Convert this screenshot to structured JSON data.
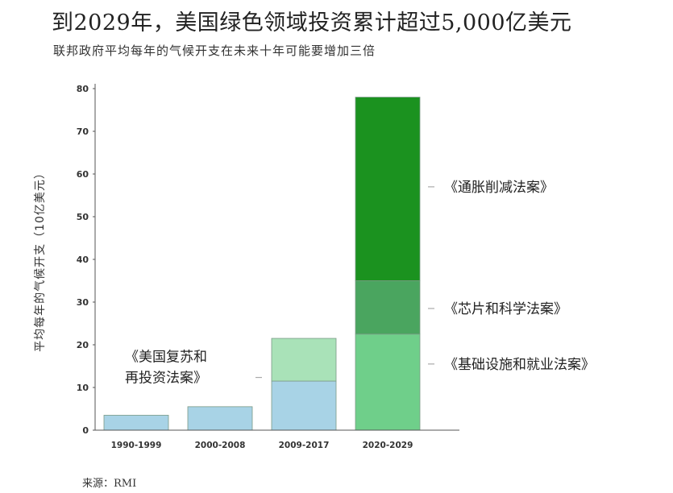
{
  "title": "到2029年，美国绿色领域投资累计超过5,000亿美元",
  "subtitle": "联邦政府平均每年的气候开支在未来十年可能要增加三倍",
  "source": "来源：RMI",
  "colors": {
    "blue": "#a8d3e6",
    "light_green": "#a9e2b8",
    "green_low": "#6fcf8a",
    "green_mid": "#4aa55f",
    "green_top": "#1b921f",
    "axis": "#555555"
  },
  "chart_data": {
    "type": "bar",
    "stacked": true,
    "categories": [
      "1990-1999",
      "2000-2008",
      "2009-2017",
      "2020-2029"
    ],
    "ylabel": "平均每年的气候开支（10亿美元）",
    "xlabel": "",
    "ylim": [
      0,
      80
    ],
    "yticks": [
      0,
      10,
      20,
      30,
      40,
      50,
      60,
      70,
      80
    ],
    "segments": [
      {
        "category": "1990-1999",
        "from": 0,
        "to": 3.5,
        "color": "#a8d3e6"
      },
      {
        "category": "2000-2008",
        "from": 0,
        "to": 5.5,
        "color": "#a8d3e6"
      },
      {
        "category": "2009-2017",
        "from": 0,
        "to": 11.5,
        "color": "#a8d3e6"
      },
      {
        "category": "2009-2017",
        "from": 11.5,
        "to": 21.5,
        "color": "#a9e2b8"
      },
      {
        "category": "2020-2029",
        "from": 0,
        "to": 22.5,
        "color": "#6fcf8a"
      },
      {
        "category": "2020-2029",
        "from": 22.5,
        "to": 35,
        "color": "#4aa55f"
      },
      {
        "category": "2020-2029",
        "from": 35,
        "to": 78,
        "color": "#1b921f"
      }
    ],
    "annotations": [
      {
        "lines": [
          "《美国复苏和",
          "再投资法案》"
        ],
        "target_category": "2009-2017",
        "y": 16.5
      },
      {
        "lines": [
          "《通胀削减法案》"
        ],
        "target_category": "2020-2029",
        "y": 57
      },
      {
        "lines": [
          "《芯片和科学法案》"
        ],
        "target_category": "2020-2029",
        "y": 28.5
      },
      {
        "lines": [
          "《基础设施和就业法案》"
        ],
        "target_category": "2020-2029",
        "y": 15.5
      }
    ],
    "grid": false,
    "legend": "none"
  }
}
